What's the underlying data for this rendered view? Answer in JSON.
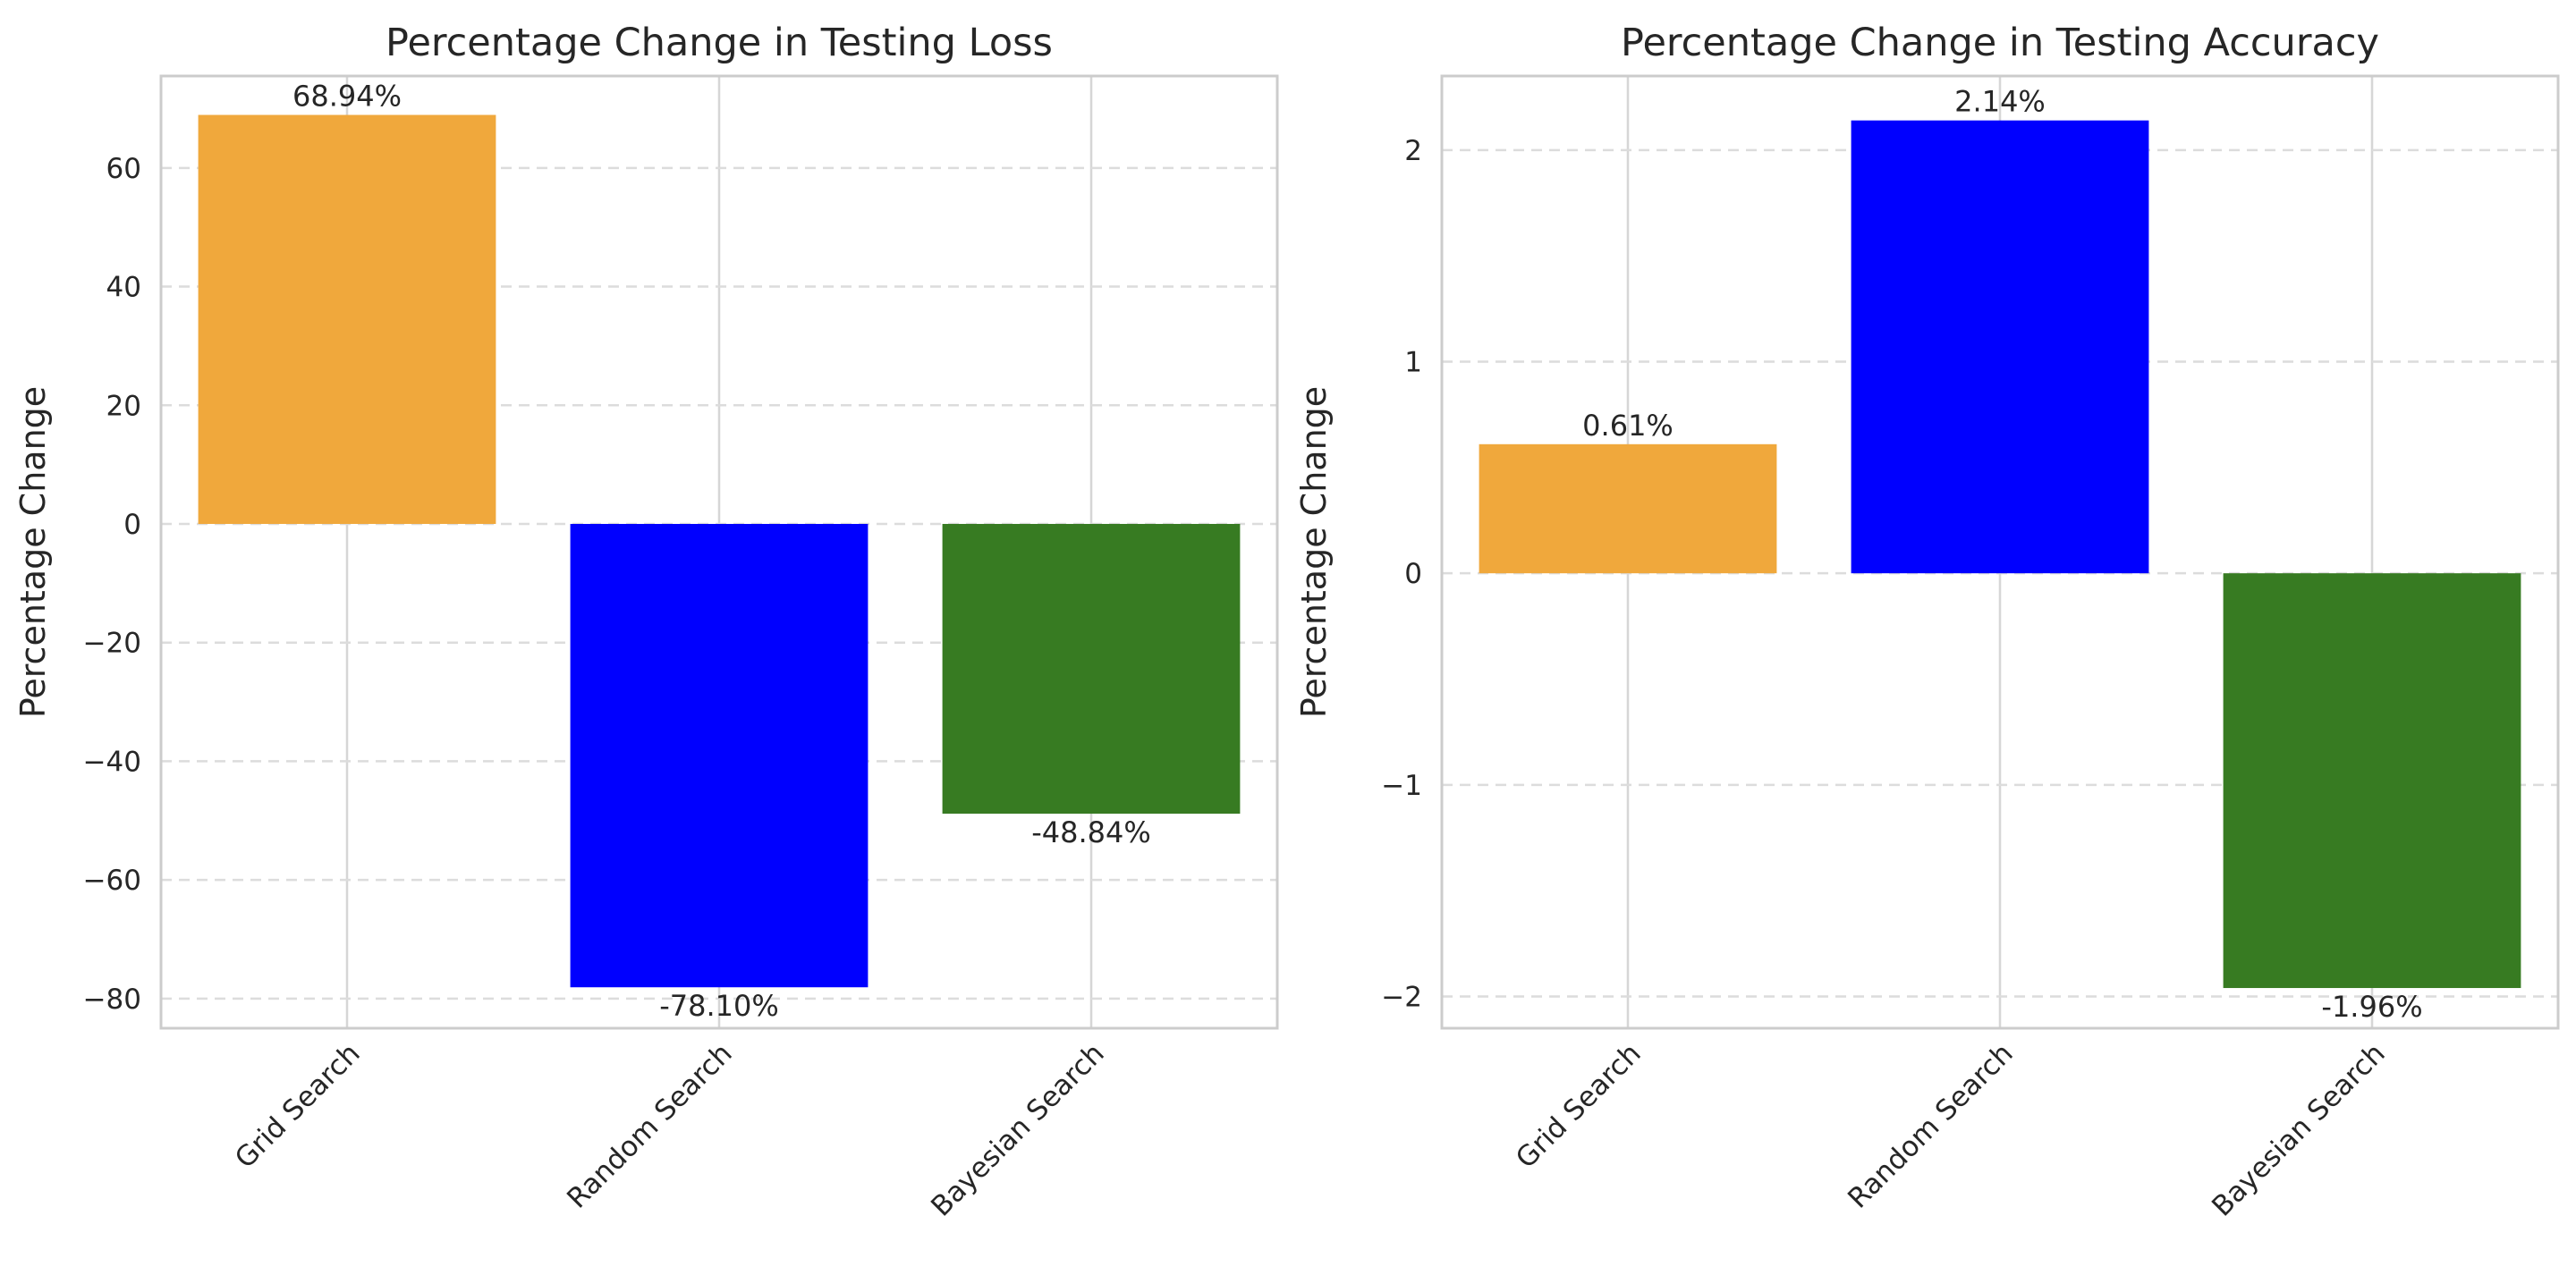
{
  "chart_data": [
    {
      "type": "bar",
      "title": "Percentage Change in Testing Loss",
      "xlabel": "",
      "ylabel": "Percentage Change",
      "categories": [
        "Grid Search",
        "Random Search",
        "Bayesian Search"
      ],
      "values": [
        68.94,
        -78.1,
        -48.84
      ],
      "data_labels": [
        "68.94%",
        "-78.10%",
        "-48.84%"
      ],
      "colors": [
        "#f0a83c",
        "#0000ff",
        "#377b22"
      ],
      "yticks": [
        60,
        40,
        20,
        0,
        -20,
        -40,
        -60,
        -80
      ],
      "ytick_labels": [
        "60",
        "40",
        "20",
        "0",
        "−20",
        "−40",
        "−60",
        "−80"
      ],
      "ylim": [
        -85,
        75.5
      ],
      "grid": true
    },
    {
      "type": "bar",
      "title": "Percentage Change in Testing Accuracy",
      "xlabel": "",
      "ylabel": "Percentage Change",
      "categories": [
        "Grid Search",
        "Random Search",
        "Bayesian Search"
      ],
      "values": [
        0.61,
        2.14,
        -1.96
      ],
      "data_labels": [
        "0.61%",
        "2.14%",
        "-1.96%"
      ],
      "colors": [
        "#f0a83c",
        "#0000ff",
        "#377b22"
      ],
      "yticks": [
        2,
        1,
        0,
        -1,
        -2
      ],
      "ytick_labels": [
        "2",
        "1",
        "0",
        "−1",
        "−2"
      ],
      "ylim": [
        -2.15,
        2.35
      ],
      "grid": true
    }
  ]
}
